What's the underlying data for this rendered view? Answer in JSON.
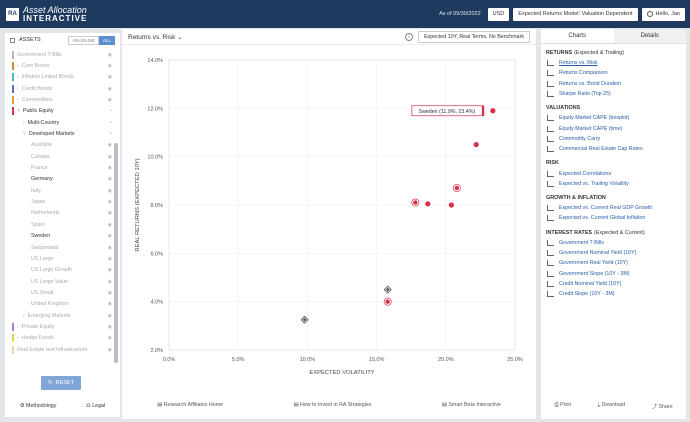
{
  "header": {
    "logo_mark": "RA",
    "logo_line1": "Asset Allocation",
    "logo_line2": "INTERACTIVE",
    "as_of": "As of 09/30/2022",
    "currency": "USD",
    "model": "Expected Returns Model: Valuation Dependent",
    "user": "Hello, Jan"
  },
  "sidebar": {
    "assets_label": "ASSETS",
    "toggle_headline": "HEADLINE",
    "toggle_all": "ALL",
    "items": [
      {
        "label": "Government T-Bills",
        "color": "#b8b8b8",
        "level": 0,
        "chev": false,
        "dark": false
      },
      {
        "label": "Core Bonds",
        "color": "#c98a3c",
        "level": 0,
        "chev": true,
        "dark": false
      },
      {
        "label": "Inflation Linked Bonds",
        "color": "#4ab6c8",
        "level": 0,
        "chev": true,
        "dark": false
      },
      {
        "label": "Credit Bonds",
        "color": "#5b6fd1",
        "level": 0,
        "chev": true,
        "dark": false
      },
      {
        "label": "Commodities",
        "color": "#e89a3c",
        "level": 0,
        "chev": true,
        "dark": false
      },
      {
        "label": "Public Equity",
        "color": "#d9304a",
        "level": 0,
        "chev": true,
        "dark": true
      },
      {
        "label": "Multi-Country",
        "color": "",
        "level": 1,
        "chev": true,
        "dark": true
      },
      {
        "label": "Developed Markets",
        "color": "",
        "level": 1,
        "chev": true,
        "dark": true
      },
      {
        "label": "Australia",
        "color": "",
        "level": 2,
        "chev": false,
        "dark": false
      },
      {
        "label": "Canada",
        "color": "",
        "level": 2,
        "chev": false,
        "dark": false
      },
      {
        "label": "France",
        "color": "",
        "level": 2,
        "chev": false,
        "dark": false
      },
      {
        "label": "Germany",
        "color": "",
        "level": 2,
        "chev": false,
        "dark": true
      },
      {
        "label": "Italy",
        "color": "",
        "level": 2,
        "chev": false,
        "dark": false
      },
      {
        "label": "Japan",
        "color": "",
        "level": 2,
        "chev": false,
        "dark": false
      },
      {
        "label": "Netherlands",
        "color": "",
        "level": 2,
        "chev": false,
        "dark": false
      },
      {
        "label": "Spain",
        "color": "",
        "level": 2,
        "chev": false,
        "dark": false
      },
      {
        "label": "Sweden",
        "color": "",
        "level": 2,
        "chev": false,
        "dark": true
      },
      {
        "label": "Switzerland",
        "color": "",
        "level": 2,
        "chev": false,
        "dark": false
      },
      {
        "label": "US Large",
        "color": "",
        "level": 2,
        "chev": false,
        "dark": false
      },
      {
        "label": "US Large Growth",
        "color": "",
        "level": 2,
        "chev": false,
        "dark": false
      },
      {
        "label": "US Large Value",
        "color": "",
        "level": 2,
        "chev": false,
        "dark": false
      },
      {
        "label": "US Small",
        "color": "",
        "level": 2,
        "chev": false,
        "dark": false
      },
      {
        "label": "United Kingdom",
        "color": "",
        "level": 2,
        "chev": false,
        "dark": false
      },
      {
        "label": "Emerging Markets",
        "color": "",
        "level": 1,
        "chev": true,
        "dark": false
      },
      {
        "label": "Private Equity",
        "color": "#b07ad1",
        "level": 0,
        "chev": true,
        "dark": false
      },
      {
        "label": "Hedge Funds",
        "color": "#e0d84a",
        "level": 0,
        "chev": true,
        "dark": false
      },
      {
        "label": "Real Estate and Infrastructure",
        "color": "#e8d8a8",
        "level": 0,
        "chev": false,
        "dark": false
      }
    ],
    "reset_label": "RESET",
    "methodology_label": "Methodology",
    "legal_label": "Legal"
  },
  "main": {
    "chart_title": "Returns vs. Risk",
    "info": "i",
    "benchmark": "Expected 10Y, Real Terms, No Benchmark",
    "tooltip": "Sweden (11.9%, 23.4%)",
    "footer": [
      "Research Affiliates Home",
      "How to Invest in RA Strategies",
      "Smart Beta Interactive"
    ]
  },
  "chart_data": {
    "type": "scatter",
    "title": "",
    "xlabel": "EXPECTED VOLATILITY",
    "ylabel": "REAL RETURNS (EXPECTED 10Y)",
    "xlim": [
      0,
      25
    ],
    "ylim": [
      2,
      14
    ],
    "x_ticks": [
      "0.0%",
      "5.0%",
      "10.0%",
      "15.0%",
      "20.0%",
      "25.0%"
    ],
    "y_ticks": [
      "2.0%",
      "4.0%",
      "6.0%",
      "8.0%",
      "10.0%",
      "12.0%",
      "14.0%"
    ],
    "points": [
      {
        "x": 23.4,
        "y": 11.9,
        "color": "#d9304a",
        "shape": "circle"
      },
      {
        "x": 22.2,
        "y": 10.5,
        "color": "#d9304a",
        "shape": "circle"
      },
      {
        "x": 20.8,
        "y": 8.7,
        "color": "#d9304a",
        "shape": "circle-ring"
      },
      {
        "x": 20.4,
        "y": 8.0,
        "color": "#d9304a",
        "shape": "circle"
      },
      {
        "x": 18.7,
        "y": 8.05,
        "color": "#d9304a",
        "shape": "circle"
      },
      {
        "x": 17.8,
        "y": 8.1,
        "color": "#d9304a",
        "shape": "circle-ring"
      },
      {
        "x": 15.8,
        "y": 4.0,
        "color": "#d9304a",
        "shape": "circle-ring"
      },
      {
        "x": 15.8,
        "y": 4.5,
        "color": "#555555",
        "shape": "diamond"
      },
      {
        "x": 9.8,
        "y": 3.25,
        "color": "#555555",
        "shape": "diamond"
      }
    ]
  },
  "right": {
    "tab_charts": "Charts",
    "tab_details": "Details",
    "sections": [
      {
        "title": "RETURNS",
        "sub": "(Expected & Trailing)",
        "links": [
          "Returns vs. Risk",
          "Returns Comparison",
          "Returns vs. Bond Duration",
          "Sharpe Ratio (Top 25)"
        ]
      },
      {
        "title": "VALUATIONS",
        "sub": "",
        "links": [
          "Equity Market CAPE (boxplot)",
          "Equity Market CAPE (time)",
          "Commodity Carry",
          "Commercial Real Estate Cap Rates"
        ]
      },
      {
        "title": "RISK",
        "sub": "",
        "links": [
          "Expected Correlations",
          "Expected vs. Trailing Volatility"
        ]
      },
      {
        "title": "GROWTH & INFLATION",
        "sub": "",
        "links": [
          "Expected vs. Current Real GDP Growth",
          "Expected vs. Current Global Inflation"
        ]
      },
      {
        "title": "INTEREST RATES",
        "sub": "(Expected & Current)",
        "links": [
          "Government T-Bills",
          "Government Nominal Yield (10Y)",
          "Government Real Yield (10Y)",
          "Government Slope (10Y - 3M)",
          "Credit Nominal Yield (10Y)",
          "Credit Slope (10Y - 3M)"
        ]
      }
    ],
    "footer": [
      "Print",
      "Download",
      "Share"
    ]
  }
}
